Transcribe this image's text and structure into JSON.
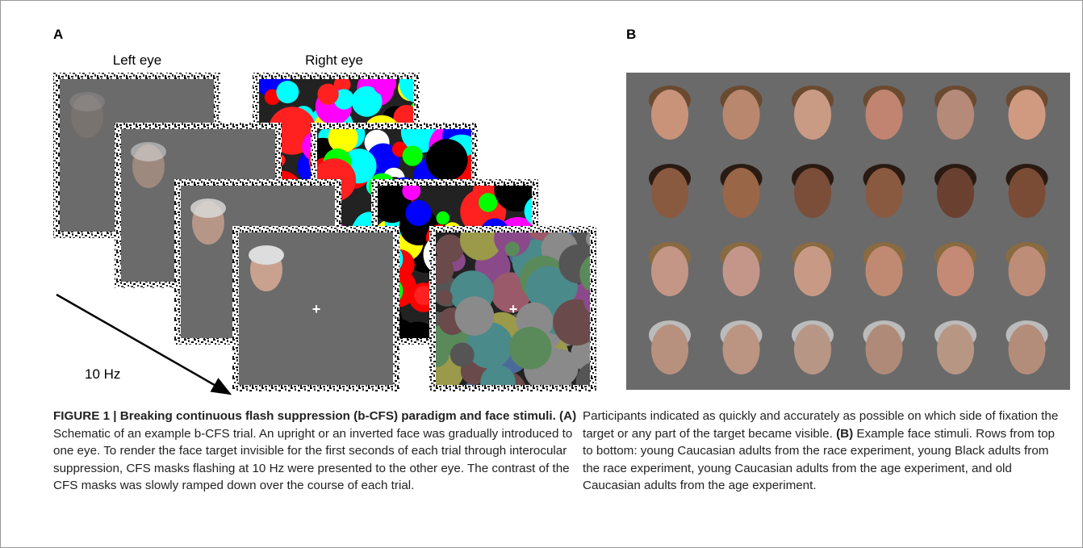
{
  "panel_a": {
    "label": "A",
    "left_eye": "Left eye",
    "right_eye": "Right eye",
    "rate": "10 Hz",
    "fixation": "+"
  },
  "panel_b": {
    "label": "B"
  },
  "caption": {
    "title": "FIGURE 1 | Breaking continuous flash suppression (b-CFS) paradigm and face stimuli.",
    "a_label": "(A)",
    "a_text": "Schematic of an example b-CFS trial. An upright or an inverted face was gradually introduced to one eye. To render the face target invisible for the first seconds of each trial through interocular suppression, CFS masks flashing at 10 Hz were presented to the other eye. The contrast of the CFS masks was slowly ramped down over the course of each trial.",
    "a_text_cont": "Participants indicated as quickly and accurately as possible on which side of fixation the target or any part of the target became visible.",
    "b_label": "(B)",
    "b_text": "Example face stimuli. Rows from top to bottom: young Caucasian adults from the race experiment, young Black adults from the race experiment, young Caucasian adults from the age experiment, and old Caucasian adults from the age experiment."
  }
}
